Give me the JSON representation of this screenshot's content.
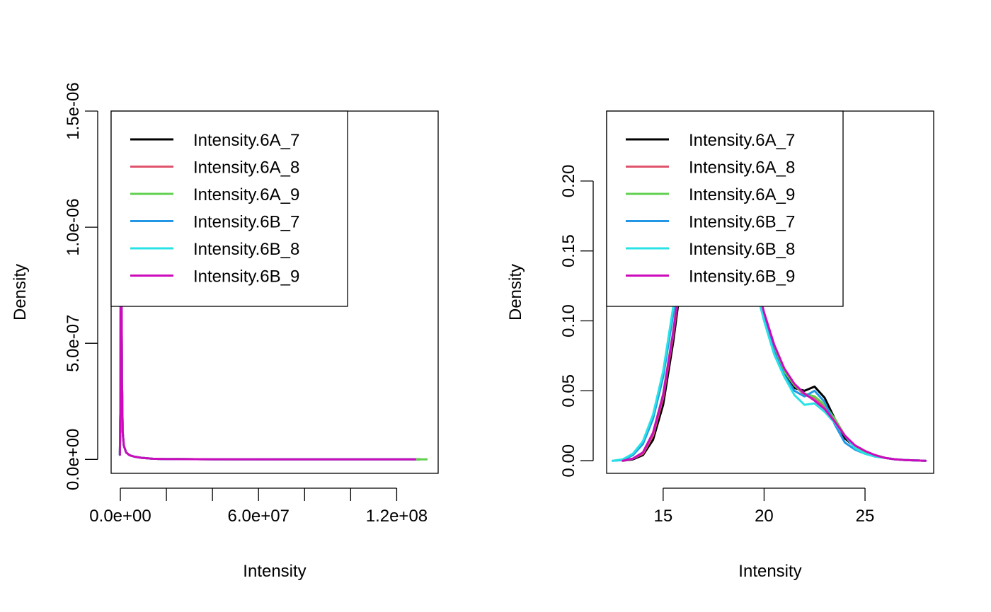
{
  "colors": {
    "Intensity.6A_7": "#000000",
    "Intensity.6A_8": "#DF536B",
    "Intensity.6A_9": "#61D04F",
    "Intensity.6B_7": "#2297E6",
    "Intensity.6B_8": "#28E2E5",
    "Intensity.6B_9": "#CD0BBC"
  },
  "chart_data": [
    {
      "type": "line",
      "xlabel": "Intensity",
      "ylabel": "Density",
      "xlim": [
        -4000000,
        138000000
      ],
      "ylim": [
        -6e-08,
        1.5e-06
      ],
      "x_ticks": [
        0,
        20000000,
        40000000,
        60000000,
        80000000,
        100000000,
        120000000
      ],
      "x_tick_labels": [
        "0.0e+00",
        "",
        "",
        "6.0e+07",
        "",
        "",
        "1.2e+08"
      ],
      "y_ticks": [
        0,
        5e-07,
        1e-06,
        1.5e-06
      ],
      "y_tick_labels": [
        "0.0e+00",
        "5.0e-07",
        "1.0e-06",
        "1.5e-06"
      ],
      "legend": {
        "position": "top-left",
        "entries": [
          "Intensity.6A_7",
          "Intensity.6A_8",
          "Intensity.6A_9",
          "Intensity.6B_7",
          "Intensity.6B_8",
          "Intensity.6B_9"
        ]
      },
      "series": [
        {
          "name": "Intensity.6A_7",
          "x": [
            -200000,
            0,
            150000,
            300000,
            450000,
            700000,
            1000000,
            1500000,
            2500000,
            4000000,
            6000000,
            9000000,
            14000000,
            20000000,
            40000000,
            80000000,
            130000000
          ],
          "y": [
            2e-08,
            2e-07,
            7.5e-07,
            1.6e-06,
            9e-07,
            3.5e-07,
            1.2e-07,
            6e-08,
            3e-08,
            1.8e-08,
            1.2e-08,
            7e-09,
            3e-09,
            1.5e-09,
            5e-10,
            1e-10,
            0
          ]
        },
        {
          "name": "Intensity.6A_8",
          "x": [
            -200000,
            0,
            150000,
            300000,
            450000,
            700000,
            1000000,
            1500000,
            2500000,
            4000000,
            6000000,
            9000000,
            14000000,
            20000000,
            40000000,
            80000000,
            128000000
          ],
          "y": [
            2e-08,
            2e-07,
            7.5e-07,
            1.6e-06,
            9e-07,
            3.5e-07,
            1.2e-07,
            6e-08,
            3e-08,
            1.8e-08,
            1.2e-08,
            7e-09,
            3e-09,
            1.5e-09,
            5e-10,
            1e-10,
            0
          ]
        },
        {
          "name": "Intensity.6A_9",
          "x": [
            -200000,
            0,
            150000,
            300000,
            450000,
            700000,
            1000000,
            1500000,
            2500000,
            4000000,
            6000000,
            9000000,
            14000000,
            20000000,
            40000000,
            80000000,
            133000000
          ],
          "y": [
            2e-08,
            2e-07,
            7.5e-07,
            1.6e-06,
            9e-07,
            3.5e-07,
            1.2e-07,
            6e-08,
            3e-08,
            1.8e-08,
            1.2e-08,
            7e-09,
            3e-09,
            1.5e-09,
            5e-10,
            1e-10,
            0
          ]
        },
        {
          "name": "Intensity.6B_7",
          "x": [
            -200000,
            0,
            150000,
            300000,
            450000,
            700000,
            1000000,
            1500000,
            2500000,
            4000000,
            6000000,
            9000000,
            14000000,
            20000000,
            40000000,
            80000000,
            128000000
          ],
          "y": [
            2e-08,
            2e-07,
            7.5e-07,
            1.6e-06,
            9e-07,
            3.5e-07,
            1.2e-07,
            6e-08,
            3e-08,
            1.8e-08,
            1.2e-08,
            7e-09,
            3e-09,
            1.5e-09,
            5e-10,
            1e-10,
            0
          ]
        },
        {
          "name": "Intensity.6B_8",
          "x": [
            -200000,
            0,
            150000,
            300000,
            450000,
            700000,
            1000000,
            1500000,
            2500000,
            4000000,
            6000000,
            9000000,
            14000000,
            20000000,
            40000000,
            80000000,
            128000000
          ],
          "y": [
            2e-08,
            2e-07,
            7.5e-07,
            1.6e-06,
            9e-07,
            3.5e-07,
            1.2e-07,
            6e-08,
            3e-08,
            1.8e-08,
            1.2e-08,
            7e-09,
            3e-09,
            1.5e-09,
            5e-10,
            1e-10,
            0
          ]
        },
        {
          "name": "Intensity.6B_9",
          "x": [
            -200000,
            0,
            150000,
            300000,
            450000,
            700000,
            1000000,
            1500000,
            2500000,
            4000000,
            6000000,
            9000000,
            14000000,
            20000000,
            40000000,
            80000000,
            128000000
          ],
          "y": [
            2e-08,
            2e-07,
            7.5e-07,
            1.6e-06,
            9e-07,
            3.5e-07,
            1.2e-07,
            6e-08,
            3e-08,
            1.8e-08,
            1.2e-08,
            7e-09,
            3e-09,
            1.5e-09,
            5e-10,
            1e-10,
            0
          ]
        }
      ]
    },
    {
      "type": "line",
      "xlabel": "Intensity",
      "ylabel": "Density",
      "xlim": [
        12.2,
        28.4
      ],
      "ylim": [
        -0.009,
        0.25
      ],
      "x_ticks": [
        15,
        20,
        25
      ],
      "x_tick_labels": [
        "15",
        "20",
        "25"
      ],
      "y_ticks": [
        0,
        0.05,
        0.1,
        0.15,
        0.2
      ],
      "y_tick_labels": [
        "0.00",
        "0.05",
        "0.10",
        "0.15",
        "0.20"
      ],
      "legend": {
        "position": "top-left",
        "entries": [
          "Intensity.6A_7",
          "Intensity.6A_8",
          "Intensity.6A_9",
          "Intensity.6B_7",
          "Intensity.6B_8",
          "Intensity.6B_9"
        ]
      },
      "series": [
        {
          "name": "Intensity.6A_7",
          "x": [
            13,
            13.5,
            14,
            14.5,
            15,
            15.5,
            16,
            16.5,
            17,
            17.5,
            18,
            18.5,
            19,
            19.5,
            20,
            20.5,
            21,
            21.5,
            22,
            22.5,
            23,
            23.5,
            24,
            24.5,
            25,
            25.5,
            26,
            26.5,
            27,
            27.5,
            28
          ],
          "y": [
            0,
            0.001,
            0.004,
            0.015,
            0.04,
            0.085,
            0.14,
            0.19,
            0.225,
            0.24,
            0.235,
            0.21,
            0.17,
            0.135,
            0.105,
            0.08,
            0.063,
            0.052,
            0.05,
            0.053,
            0.045,
            0.03,
            0.016,
            0.01,
            0.006,
            0.004,
            0.002,
            0.001,
            0.0005,
            0.0002,
            0
          ]
        },
        {
          "name": "Intensity.6A_8",
          "x": [
            13,
            13.5,
            14,
            14.5,
            15,
            15.5,
            16,
            16.5,
            17,
            17.5,
            18,
            18.5,
            19,
            19.5,
            20,
            20.5,
            21,
            21.5,
            22,
            22.5,
            23,
            23.5,
            24,
            24.5,
            25,
            25.5,
            26,
            26.5,
            27,
            27.5,
            28
          ],
          "y": [
            0,
            0.0015,
            0.005,
            0.018,
            0.045,
            0.09,
            0.145,
            0.195,
            0.228,
            0.24,
            0.233,
            0.208,
            0.168,
            0.133,
            0.104,
            0.08,
            0.064,
            0.054,
            0.047,
            0.045,
            0.039,
            0.03,
            0.018,
            0.01,
            0.006,
            0.004,
            0.002,
            0.001,
            0.0005,
            0.0002,
            0
          ]
        },
        {
          "name": "Intensity.6A_9",
          "x": [
            13,
            13.5,
            14,
            14.5,
            15,
            15.5,
            16,
            16.5,
            17,
            17.5,
            18,
            18.5,
            19,
            19.5,
            20,
            20.5,
            21,
            21.5,
            22,
            22.5,
            23,
            23.5,
            24,
            24.5,
            25,
            25.5,
            26,
            26.5,
            27,
            27.5,
            28
          ],
          "y": [
            0,
            0.0015,
            0.006,
            0.02,
            0.048,
            0.093,
            0.148,
            0.197,
            0.228,
            0.24,
            0.232,
            0.206,
            0.166,
            0.132,
            0.104,
            0.08,
            0.064,
            0.054,
            0.048,
            0.046,
            0.04,
            0.03,
            0.018,
            0.01,
            0.006,
            0.004,
            0.002,
            0.001,
            0.0005,
            0.0002,
            0
          ]
        },
        {
          "name": "Intensity.6B_7",
          "x": [
            12.5,
            13,
            13.5,
            14,
            14.5,
            15,
            15.5,
            16,
            16.5,
            17,
            17.5,
            18,
            18.5,
            19,
            19.5,
            20,
            20.5,
            21,
            21.5,
            22,
            22.5,
            23,
            23.5,
            24,
            24.5,
            25,
            25.5,
            26,
            26.5,
            27,
            27.5,
            28
          ],
          "y": [
            0,
            0.0005,
            0.004,
            0.012,
            0.03,
            0.06,
            0.105,
            0.158,
            0.205,
            0.232,
            0.24,
            0.23,
            0.203,
            0.164,
            0.13,
            0.102,
            0.078,
            0.061,
            0.05,
            0.046,
            0.05,
            0.042,
            0.026,
            0.013,
            0.008,
            0.005,
            0.003,
            0.002,
            0.001,
            0.0005,
            0.0002,
            0
          ]
        },
        {
          "name": "Intensity.6B_8",
          "x": [
            12.5,
            13,
            13.5,
            14,
            14.5,
            15,
            15.5,
            16,
            16.5,
            17,
            17.5,
            18,
            18.5,
            19,
            19.5,
            20,
            20.5,
            21,
            21.5,
            22,
            22.5,
            23,
            23.5,
            24,
            24.5,
            25,
            25.5,
            26,
            26.5,
            27,
            27.5,
            28
          ],
          "y": [
            0,
            0.001,
            0.005,
            0.014,
            0.033,
            0.064,
            0.11,
            0.163,
            0.21,
            0.235,
            0.24,
            0.228,
            0.2,
            0.162,
            0.128,
            0.1,
            0.076,
            0.06,
            0.047,
            0.04,
            0.041,
            0.035,
            0.027,
            0.018,
            0.009,
            0.005,
            0.003,
            0.002,
            0.001,
            0.0005,
            0.0002,
            0
          ]
        },
        {
          "name": "Intensity.6B_9",
          "x": [
            13,
            13.5,
            14,
            14.5,
            15,
            15.5,
            16,
            16.5,
            17,
            17.5,
            18,
            18.5,
            19,
            19.5,
            20,
            20.5,
            21,
            21.5,
            22,
            22.5,
            23,
            23.5,
            24,
            24.5,
            25,
            25.5,
            26,
            26.5,
            27,
            27.5,
            28
          ],
          "y": [
            0,
            0.0015,
            0.006,
            0.02,
            0.047,
            0.092,
            0.147,
            0.197,
            0.228,
            0.24,
            0.232,
            0.207,
            0.168,
            0.134,
            0.106,
            0.083,
            0.066,
            0.055,
            0.048,
            0.043,
            0.037,
            0.028,
            0.018,
            0.011,
            0.007,
            0.004,
            0.002,
            0.001,
            0.0005,
            0.0002,
            0
          ]
        }
      ]
    }
  ]
}
